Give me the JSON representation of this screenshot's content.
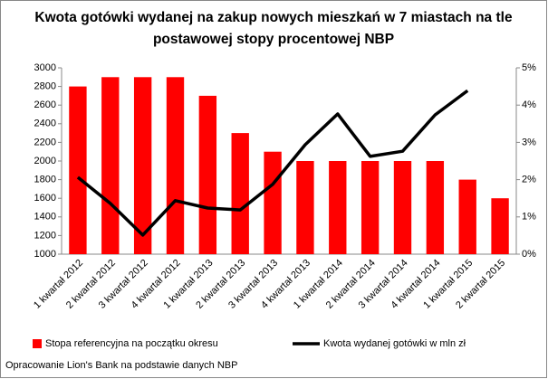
{
  "chart_data": {
    "type": "bar",
    "title": "Kwota gotówki wydanej na zakup nowych mieszkań w 7 miastach na tle",
    "subtitle": "postawowej stopy procentowej NBP",
    "categories": [
      "1 kwartał 2012",
      "2 kwartał 2012",
      "3 kwartał 2012",
      "4 kwartał 2012",
      "1 kwartał 2013",
      "2 kwartał 2013",
      "3 kwartał 2013",
      "4 kwartał 2013",
      "1 kwartał 2014",
      "2 kwartał 2014",
      "3 kwartał 2014",
      "4 kwartał 2014",
      "1 kwartał 2015",
      "2 kwartał 2015"
    ],
    "series": [
      {
        "name": "Stopa referencyjna na początku okresu",
        "type": "bar",
        "axis": "y2",
        "color": "#ff0000",
        "values": [
          4.5,
          4.75,
          4.75,
          4.75,
          4.25,
          3.25,
          2.75,
          2.5,
          2.5,
          2.5,
          2.5,
          2.5,
          2.0,
          1.5
        ]
      },
      {
        "name": "Kwota wydanej gotówki w mln zł",
        "type": "line",
        "axis": "y",
        "color": "#000000",
        "values": [
          1825,
          1545,
          1205,
          1575,
          1495,
          1475,
          1750,
          2175,
          2505,
          2050,
          2105,
          2495,
          2755,
          null
        ]
      }
    ],
    "ylim": [
      1000,
      3000
    ],
    "yticks": [
      1000,
      1200,
      1400,
      1600,
      1800,
      2000,
      2200,
      2400,
      2600,
      2800,
      3000
    ],
    "y2lim": [
      0,
      5
    ],
    "y2ticks": [
      {
        "value": 0,
        "label": "0%"
      },
      {
        "value": 1,
        "label": "1%"
      },
      {
        "value": 2,
        "label": "2%"
      },
      {
        "value": 3,
        "label": "3%"
      },
      {
        "value": 4,
        "label": "4%"
      },
      {
        "value": 5,
        "label": "5%"
      }
    ],
    "grid": false,
    "legend": "bottom",
    "footnote": "Opracowanie Lion's Bank na podstawie danych NBP"
  }
}
